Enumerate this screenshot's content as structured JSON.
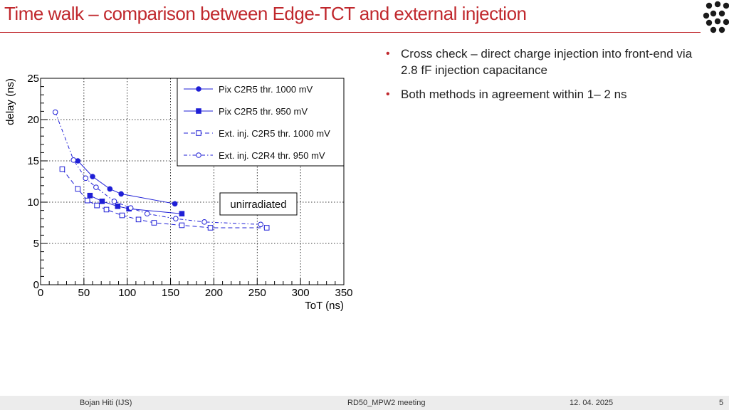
{
  "slide": {
    "title": "Time walk – comparison between Edge-TCT and external injection",
    "bullets": [
      "Cross check – direct charge injection into front-end via 2.8 fF injection capacitance",
      "Both methods in agreement within 1– 2 ns"
    ],
    "footer": {
      "author": "Bojan Hiti (IJS)",
      "meeting": "RD50_MPW2 meeting",
      "date": "12. 04. 2025",
      "page": "5"
    },
    "colors": {
      "title": "#c0282d",
      "series": "#1f1fd6"
    }
  },
  "chart_data": {
    "type": "scatter",
    "title": "",
    "xlabel": "ToT (ns)",
    "ylabel": "delay (ns)",
    "xlim": [
      0,
      350
    ],
    "ylim": [
      0,
      25
    ],
    "xticks": [
      "0",
      "50",
      "100",
      "150",
      "200",
      "250",
      "300",
      "350"
    ],
    "yticks": [
      "0",
      "5",
      "10",
      "15",
      "20",
      "25"
    ],
    "grid": true,
    "legend_position": "top-right",
    "annotation": "unirradiated",
    "series": [
      {
        "name": "Pix C2R5 thr. 1000 mV",
        "marker": "filled-circle",
        "line": "solid",
        "x": [
          43,
          60,
          80,
          93,
          155
        ],
        "y": [
          15.0,
          13.1,
          11.6,
          11.0,
          9.8
        ]
      },
      {
        "name": "Pix C2R5 thr. 950 mV",
        "marker": "filled-square",
        "line": "solid",
        "x": [
          57,
          71,
          89,
          102,
          163
        ],
        "y": [
          10.8,
          10.1,
          9.5,
          9.2,
          8.6
        ]
      },
      {
        "name": "Ext. inj. C2R5 thr. 1000 mV",
        "marker": "open-square",
        "line": "dashed",
        "x": [
          25,
          43,
          54,
          65,
          76,
          94,
          113,
          131,
          163,
          196,
          261
        ],
        "y": [
          14.0,
          11.6,
          10.2,
          9.6,
          9.1,
          8.4,
          7.9,
          7.5,
          7.2,
          6.9,
          6.9
        ]
      },
      {
        "name": "Ext. inj. C2R4 thr. 950 mV",
        "marker": "open-circle",
        "line": "dash-dot",
        "x": [
          17,
          38,
          52,
          64,
          85,
          104,
          123,
          156,
          189,
          254
        ],
        "y": [
          20.9,
          15.1,
          12.9,
          11.8,
          10.1,
          9.3,
          8.6,
          8.0,
          7.6,
          7.3
        ]
      }
    ]
  }
}
